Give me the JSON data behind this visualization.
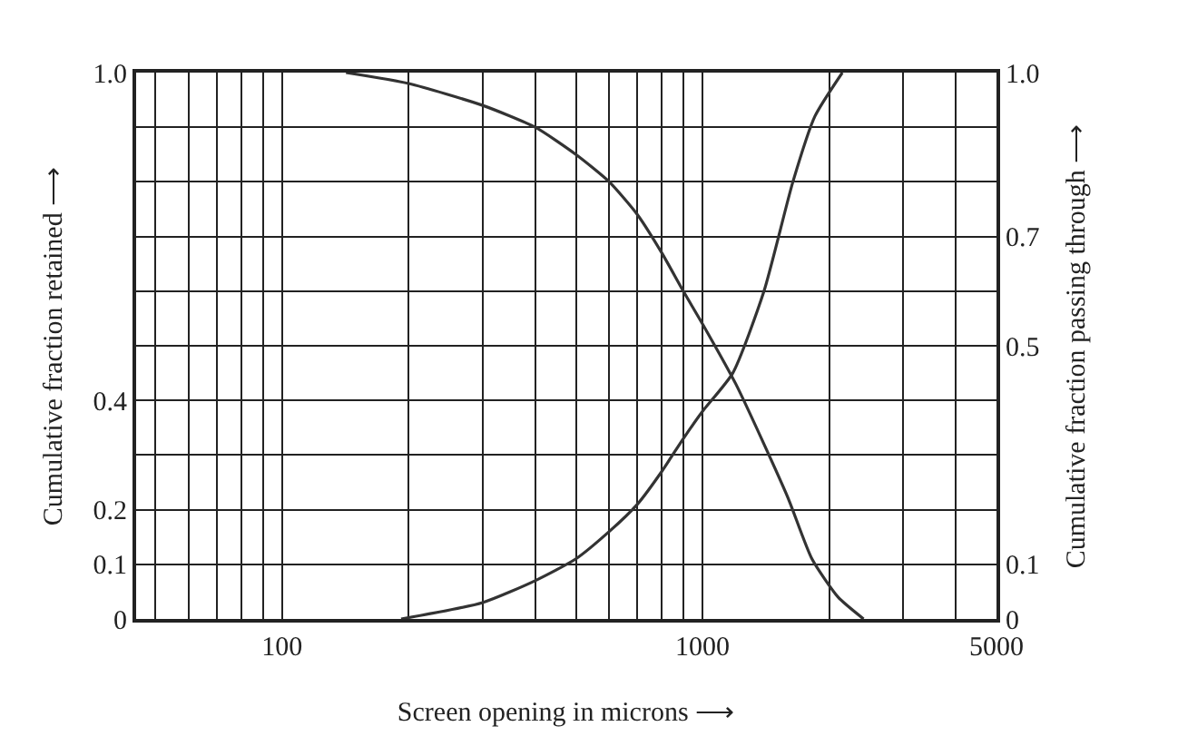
{
  "chart_data": {
    "type": "line",
    "xlabel": "Screen opening in microns ⟶",
    "ylabel": "Cumulative fraction retained ⟶",
    "y2label": "Cumulative fraction passing through ⟶",
    "log": "x",
    "grid": true,
    "marker": "none",
    "line_style": "solid",
    "xlim": [
      45,
      5000
    ],
    "xticks": [
      {
        "value": 50,
        "label": null
      },
      {
        "value": 60,
        "label": null
      },
      {
        "value": 70,
        "label": null
      },
      {
        "value": 80,
        "label": null
      },
      {
        "value": 90,
        "label": null
      },
      100,
      {
        "value": 200,
        "label": null
      },
      {
        "value": 300,
        "label": null
      },
      {
        "value": 400,
        "label": null
      },
      {
        "value": 500,
        "label": null
      },
      {
        "value": 600,
        "label": null
      },
      {
        "value": 700,
        "label": null
      },
      {
        "value": 800,
        "label": null
      },
      {
        "value": 900,
        "label": null
      },
      1000,
      {
        "value": 2000,
        "label": null
      },
      {
        "value": 3000,
        "label": null
      },
      {
        "value": 4000,
        "label": null
      },
      5000
    ],
    "ylim": [
      0,
      1
    ],
    "yticks": [
      0,
      0.1,
      0.2,
      {
        "value": 0.3,
        "label": null
      },
      0.4,
      {
        "value": 0.5,
        "label": null
      },
      {
        "value": 0.6,
        "label": null
      },
      {
        "value": 0.7,
        "label": null
      },
      {
        "value": 0.8,
        "label": null
      },
      {
        "value": 0.9,
        "label": null
      },
      {
        "value": 1,
        "label": "1.0"
      }
    ],
    "y2lim": [
      0,
      1
    ],
    "y2ticks": [
      0,
      0.1,
      0.5,
      0.7,
      {
        "value": 1,
        "label": "1.0"
      }
    ],
    "series": [
      {
        "color": "#333333",
        "x": [
          142,
          200,
          300,
          400,
          500,
          600,
          700,
          800,
          900,
          1000,
          1200,
          1400,
          1600,
          1820,
          2100,
          2415
        ],
        "values": [
          1.0,
          0.98,
          0.94,
          0.9,
          0.85,
          0.8,
          0.74,
          0.67,
          0.6,
          0.54,
          0.43,
          0.32,
          0.22,
          0.11,
          0.04,
          0.0
        ]
      },
      {
        "color": "#333333",
        "axis": "y2",
        "x": [
          192,
          300,
          400,
          500,
          600,
          700,
          800,
          900,
          1000,
          1180,
          1400,
          1640,
          1850,
          2150
        ],
        "values": [
          0.0,
          0.03,
          0.07,
          0.11,
          0.16,
          0.21,
          0.27,
          0.33,
          0.38,
          0.45,
          0.6,
          0.8,
          0.92,
          1.0
        ]
      }
    ]
  }
}
